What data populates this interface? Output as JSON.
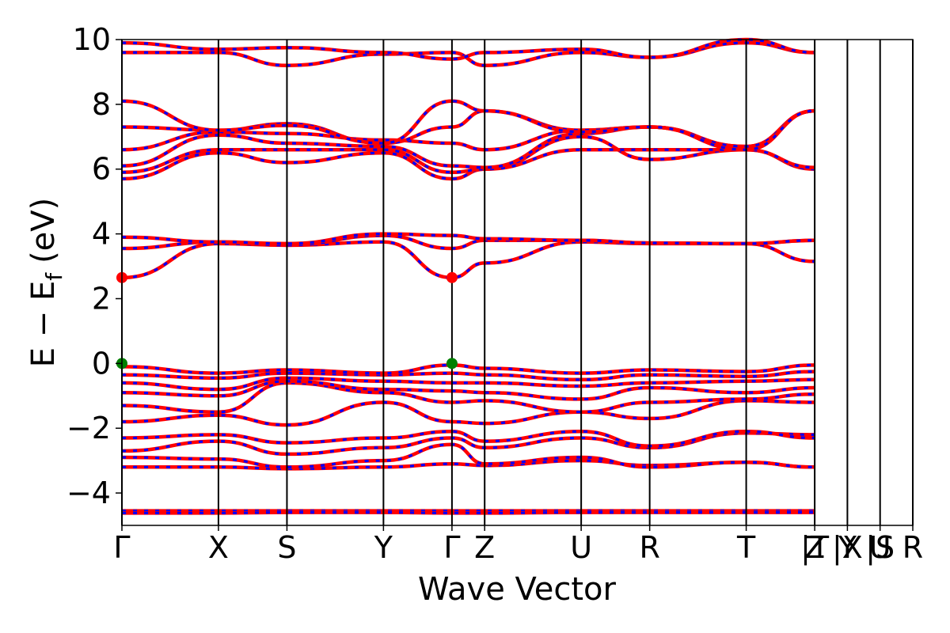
{
  "chart_data": {
    "type": "line",
    "title": "",
    "xlabel": "Wave Vector",
    "ylabel": "E − E",
    "ylabel_subscript": "f",
    "ylabel_unit": "(eV)",
    "ylim": [
      -5,
      10
    ],
    "yticks": [
      {
        "value": -4,
        "label": "−4"
      },
      {
        "value": -2,
        "label": "−2"
      },
      {
        "value": 0,
        "label": "0"
      },
      {
        "value": 2,
        "label": "2"
      },
      {
        "value": 4,
        "label": "4"
      },
      {
        "value": 6,
        "label": "6"
      },
      {
        "value": 8,
        "label": "8"
      },
      {
        "value": 10,
        "label": "10"
      }
    ],
    "xlim": [
      0,
      25.4
    ],
    "kpoints": [
      {
        "label": "Γ",
        "pos": 0
      },
      {
        "label": "X",
        "pos": 3.1
      },
      {
        "label": "S",
        "pos": 5.3
      },
      {
        "label": "Y",
        "pos": 8.4
      },
      {
        "label": "Γ",
        "pos": 10.6
      },
      {
        "label": "Z",
        "pos": 11.65
      },
      {
        "label": "U",
        "pos": 14.75
      },
      {
        "label": "R",
        "pos": 16.95
      },
      {
        "label": "T",
        "pos": 20.05
      },
      {
        "label": "Z",
        "pos": 22.25
      },
      {
        "label": "|T",
        "pos": 22.25
      },
      {
        "label": "Y",
        "pos": 23.3
      },
      {
        "label": "|X",
        "pos": 23.3
      },
      {
        "label": "U",
        "pos": 24.35
      },
      {
        "label": "|S",
        "pos": 24.35
      },
      {
        "label": "R",
        "pos": 25.4
      }
    ],
    "band_colors": {
      "spin_up": "#ff0000",
      "spin_down": "#0000ff"
    },
    "markers": [
      {
        "name": "CBM",
        "x": 0,
        "y": 2.65,
        "color": "#ff0000"
      },
      {
        "name": "CBM",
        "x": 10.6,
        "y": 2.65,
        "color": "#ff0000"
      },
      {
        "name": "VBM",
        "x": 0,
        "y": 0.0,
        "color": "#008000"
      },
      {
        "name": "VBM",
        "x": 10.6,
        "y": 0.0,
        "color": "#008000"
      }
    ],
    "series": [
      {
        "x": [
          0,
          3.1,
          5.3,
          8.4,
          10.6,
          11.65,
          14.75,
          16.95,
          20.05,
          22.25
        ],
        "y": [
          -4.55,
          -4.55,
          -4.55,
          -4.55,
          -4.55,
          -4.55,
          -4.55,
          -4.55,
          -4.55,
          -4.55
        ]
      },
      {
        "x": [
          0,
          3.1,
          5.3,
          8.4,
          10.6,
          11.65,
          14.75,
          16.95,
          20.05,
          22.25
        ],
        "y": [
          -4.62,
          -4.62,
          -4.6,
          -4.6,
          -4.62,
          -4.62,
          -4.6,
          -4.6,
          -4.6,
          -4.6
        ]
      },
      {
        "x": [
          0,
          3.1,
          5.3,
          8.4,
          10.6,
          11.65,
          14.75,
          16.95,
          20.05,
          22.25
        ],
        "y": [
          -3.2,
          -3.2,
          -3.25,
          -3.2,
          -3.1,
          -3.15,
          -3.0,
          -3.15,
          -3.05,
          -3.2
        ]
      },
      {
        "x": [
          0,
          3.1,
          5.3,
          8.4,
          10.6,
          11.65,
          14.75,
          16.95,
          20.05,
          22.25
        ],
        "y": [
          -2.9,
          -2.95,
          -3.2,
          -3.0,
          -2.5,
          -3.1,
          -2.9,
          -3.2,
          -3.05,
          -3.2
        ]
      },
      {
        "x": [
          0,
          3.1,
          5.3,
          8.4,
          10.6,
          11.65,
          14.75,
          16.95,
          20.05,
          22.25
        ],
        "y": [
          -2.7,
          -2.4,
          -2.8,
          -2.6,
          -2.3,
          -2.6,
          -2.3,
          -2.6,
          -2.15,
          -2.2
        ]
      },
      {
        "x": [
          0,
          3.1,
          5.3,
          8.4,
          10.6,
          11.65,
          14.75,
          16.95,
          20.05,
          22.25
        ],
        "y": [
          -2.3,
          -2.2,
          -2.45,
          -2.3,
          -2.1,
          -2.4,
          -2.1,
          -2.55,
          -2.1,
          -2.3
        ]
      },
      {
        "x": [
          0,
          3.1,
          5.3,
          8.4,
          10.6,
          11.65,
          14.75,
          16.95,
          20.05,
          22.25
        ],
        "y": [
          -1.8,
          -1.6,
          -1.9,
          -1.2,
          -1.8,
          -1.85,
          -1.5,
          -1.7,
          -1.15,
          -1.2
        ]
      },
      {
        "x": [
          0,
          3.1,
          5.3,
          8.4,
          10.6,
          11.65,
          14.75,
          16.95,
          20.05,
          22.25
        ],
        "y": [
          -1.3,
          -1.5,
          -0.6,
          -0.9,
          -1.2,
          -1.15,
          -1.5,
          -1.2,
          -1.1,
          -0.95
        ]
      },
      {
        "x": [
          0,
          3.1,
          5.3,
          8.4,
          10.6,
          11.65,
          14.75,
          16.95,
          20.05,
          22.25
        ],
        "y": [
          -0.9,
          -1.0,
          -0.55,
          -0.8,
          -0.85,
          -0.9,
          -1.1,
          -0.75,
          -0.9,
          -0.75
        ]
      },
      {
        "x": [
          0,
          3.1,
          5.3,
          8.4,
          10.6,
          11.65,
          14.75,
          16.95,
          20.05,
          22.25
        ],
        "y": [
          -0.6,
          -0.8,
          -0.45,
          -0.55,
          -0.6,
          -0.6,
          -0.7,
          -0.6,
          -0.55,
          -0.5
        ]
      },
      {
        "x": [
          0,
          3.1,
          5.3,
          8.4,
          10.6,
          11.65,
          14.75,
          16.95,
          20.05,
          22.25
        ],
        "y": [
          -0.35,
          -0.45,
          -0.3,
          -0.35,
          -0.3,
          -0.35,
          -0.5,
          -0.35,
          -0.4,
          -0.25
        ]
      },
      {
        "x": [
          0,
          3.1,
          5.3,
          8.4,
          10.6,
          11.65,
          14.75,
          16.95,
          20.05,
          22.25
        ],
        "y": [
          -0.1,
          -0.3,
          -0.2,
          -0.3,
          -0.05,
          -0.15,
          -0.3,
          -0.2,
          -0.25,
          -0.05
        ]
      },
      {
        "x": [
          0,
          3.1,
          5.3,
          8.4,
          10.6,
          11.65,
          14.75,
          16.95,
          20.05,
          22.25
        ],
        "y": [
          2.65,
          3.7,
          3.65,
          3.75,
          2.65,
          3.1,
          3.75,
          3.7,
          3.7,
          3.15
        ]
      },
      {
        "x": [
          0,
          3.1,
          5.3,
          8.4,
          10.6,
          11.65,
          14.75,
          16.95,
          20.05,
          22.25
        ],
        "y": [
          3.55,
          3.75,
          3.65,
          3.95,
          3.55,
          3.8,
          3.8,
          3.72,
          3.7,
          3.8
        ]
      },
      {
        "x": [
          0,
          3.1,
          5.3,
          8.4,
          10.6,
          11.65,
          14.75,
          16.95,
          20.05,
          22.25
        ],
        "y": [
          3.9,
          3.75,
          3.7,
          4.0,
          3.95,
          3.85,
          3.8,
          3.72,
          3.7,
          3.8
        ]
      },
      {
        "x": [
          0,
          3.1,
          5.3,
          8.4,
          10.6,
          11.65,
          14.75,
          16.95,
          20.05,
          22.25
        ],
        "y": [
          5.7,
          6.5,
          6.2,
          6.5,
          5.7,
          6.0,
          7.0,
          6.3,
          6.6,
          6.0
        ]
      },
      {
        "x": [
          0,
          3.1,
          5.3,
          8.4,
          10.6,
          11.65,
          14.75,
          16.95,
          20.05,
          22.25
        ],
        "y": [
          5.9,
          6.6,
          6.6,
          6.6,
          5.9,
          6.0,
          6.6,
          6.6,
          6.6,
          6.05
        ]
      },
      {
        "x": [
          0,
          3.1,
          5.3,
          8.4,
          10.6,
          11.65,
          14.75,
          16.95,
          20.05,
          22.25
        ],
        "y": [
          6.1,
          7.05,
          6.8,
          6.7,
          6.1,
          6.05,
          7.1,
          7.3,
          6.7,
          7.8
        ]
      },
      {
        "x": [
          0,
          3.1,
          5.3,
          8.4,
          10.6,
          11.65,
          14.75,
          16.95,
          20.05,
          22.25
        ],
        "y": [
          6.6,
          7.15,
          7.1,
          6.9,
          6.8,
          6.6,
          7.2,
          7.3,
          6.7,
          7.8
        ]
      },
      {
        "x": [
          0,
          3.1,
          5.3,
          8.4,
          10.6,
          11.65,
          14.75,
          16.95,
          20.05,
          22.25
        ],
        "y": [
          7.3,
          7.2,
          7.4,
          6.8,
          7.3,
          7.8,
          7.2,
          7.3,
          6.6,
          7.8
        ]
      },
      {
        "x": [
          0,
          3.1,
          5.3,
          8.4,
          10.6,
          11.65,
          14.75,
          16.95,
          20.05,
          22.25
        ],
        "y": [
          8.1,
          7.2,
          7.35,
          6.8,
          8.1,
          7.8,
          7.15,
          7.3,
          6.6,
          7.8
        ]
      },
      {
        "x": [
          0,
          3.1,
          5.3,
          8.4,
          10.6,
          11.65,
          14.75,
          16.95,
          20.05,
          22.25
        ],
        "y": [
          9.6,
          9.6,
          9.2,
          9.55,
          9.6,
          9.2,
          9.6,
          9.45,
          9.9,
          9.6
        ]
      },
      {
        "x": [
          0,
          3.1,
          5.3,
          8.4,
          10.6,
          11.65,
          14.75,
          16.95,
          20.05,
          22.25
        ],
        "y": [
          9.9,
          9.7,
          9.75,
          9.6,
          9.4,
          9.6,
          9.7,
          9.45,
          10.0,
          9.6
        ]
      }
    ]
  }
}
